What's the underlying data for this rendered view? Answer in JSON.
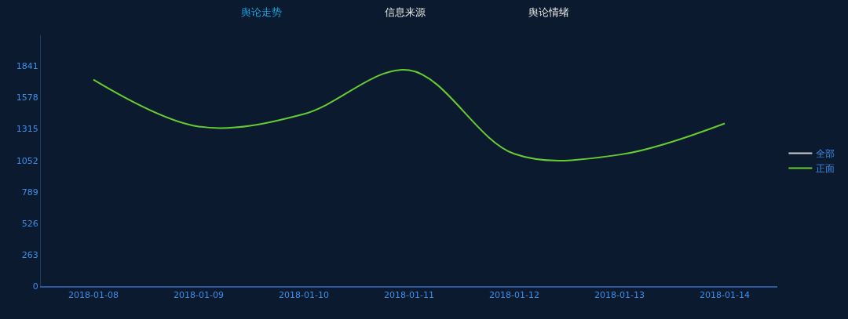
{
  "chart_data": {
    "type": "line",
    "categories": [
      "2018-01-08",
      "2018-01-09",
      "2018-01-10",
      "2018-01-11",
      "2018-01-12",
      "2018-01-13",
      "2018-01-14"
    ],
    "series": [
      {
        "name": "全部",
        "color": "#cccccc",
        "values": [
          null,
          null,
          null,
          null,
          null,
          null,
          null
        ]
      },
      {
        "name": "正面",
        "color": "#66cc33",
        "values": [
          1729,
          1336,
          1441,
          1808,
          1107,
          1100,
          1362
        ]
      }
    ],
    "ylim": [
      0,
      2100
    ],
    "yticks": [
      0,
      263,
      526,
      789,
      1052,
      1315,
      1578,
      1841
    ],
    "annotations": [
      "舆论走势",
      "信息来源",
      "舆论情绪"
    ],
    "legend": "right",
    "grid": false,
    "marker": "none",
    "line_style": "solid"
  }
}
